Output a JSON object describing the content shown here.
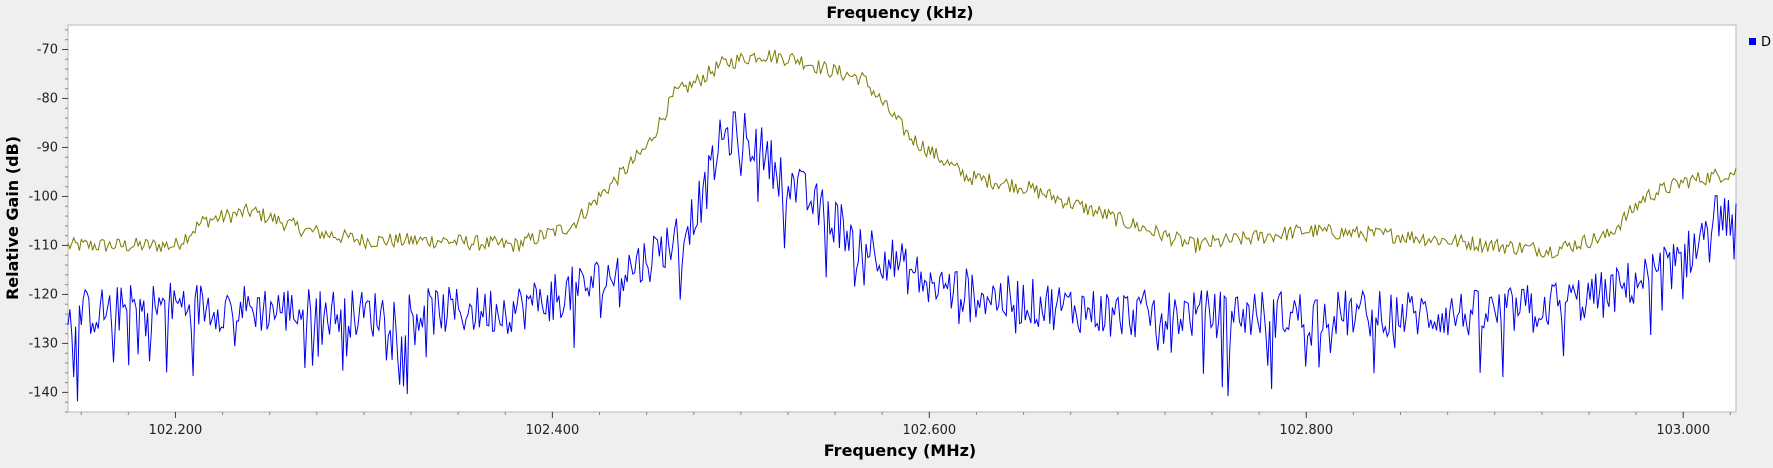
{
  "chart_data": {
    "type": "line",
    "title": "Frequency (kHz)",
    "xlabel": "Frequency (MHz)",
    "ylabel": "Relative Gain (dB)",
    "xlim": [
      102.143,
      103.028
    ],
    "ylim": [
      -144,
      -65
    ],
    "x_ticks": [
      "102.200",
      "102.400",
      "102.600",
      "102.800",
      "103.000"
    ],
    "y_ticks": [
      "-70",
      "-80",
      "-90",
      "-100",
      "-110",
      "-120",
      "-130",
      "-140"
    ],
    "legend": {
      "position": "top-right",
      "label": "D"
    },
    "grid": false,
    "colors": {
      "blue_series": "#0000ee",
      "olive_series": "#7a7a00",
      "background": "#ffffff"
    },
    "series": [
      {
        "color": "#7a7a00",
        "noise": 1.6,
        "x": [
          102.143,
          102.2,
          102.215,
          102.24,
          102.27,
          102.3,
          102.34,
          102.38,
          102.41,
          102.43,
          102.45,
          102.465,
          102.475,
          102.49,
          102.51,
          102.53,
          102.545,
          102.555,
          102.565,
          102.59,
          102.62,
          102.65,
          102.68,
          102.71,
          102.74,
          102.76,
          102.8,
          102.85,
          102.9,
          102.93,
          102.96,
          102.98,
          103.0,
          103.028
        ],
        "values": [
          -110,
          -110,
          -105,
          -103,
          -107,
          -109,
          -109,
          -110,
          -106,
          -98,
          -90,
          -79,
          -77,
          -73,
          -71,
          -72,
          -74,
          -75,
          -76,
          -88,
          -96,
          -98,
          -102,
          -106,
          -110,
          -109,
          -107,
          -108,
          -110,
          -111,
          -108,
          -100,
          -97,
          -95
        ]
      },
      {
        "color": "#0000ee",
        "noise": 5,
        "x": [
          102.143,
          102.2,
          102.3,
          102.38,
          102.42,
          102.45,
          102.47,
          102.48,
          102.49,
          102.5,
          102.51,
          102.52,
          102.54,
          102.56,
          102.58,
          102.6,
          102.64,
          102.7,
          102.8,
          102.9,
          102.96,
          103.0,
          103.02,
          103.028
        ],
        "values": [
          -124,
          -122,
          -124,
          -123,
          -118,
          -113,
          -107,
          -100,
          -88,
          -87,
          -90,
          -95,
          -102,
          -108,
          -113,
          -118,
          -121,
          -124,
          -124,
          -124,
          -120,
          -113,
          -103,
          -106
        ]
      }
    ]
  }
}
